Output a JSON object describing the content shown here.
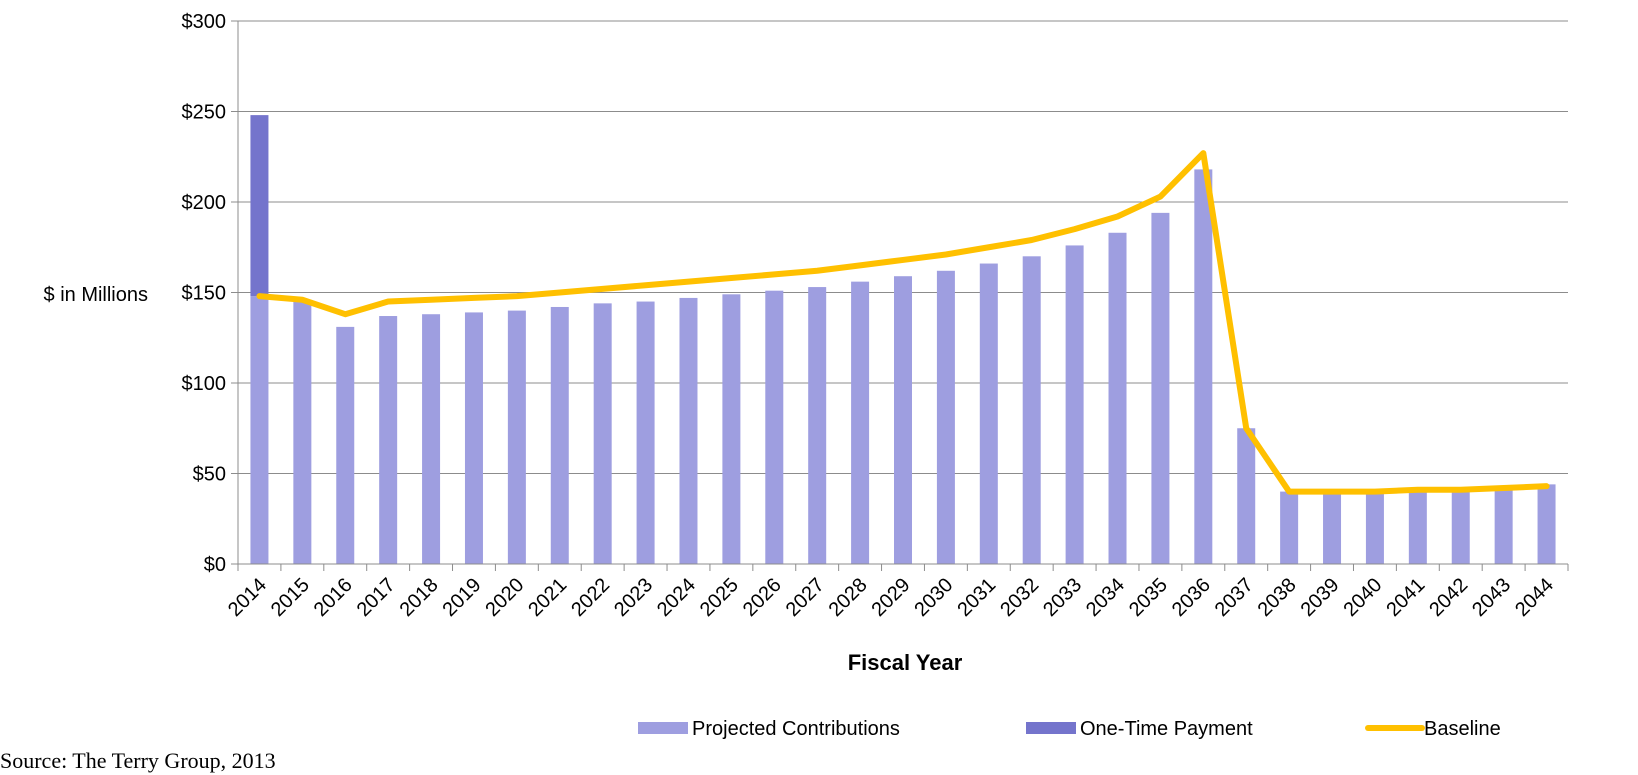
{
  "source_note": "Source: The Terry Group, 2013",
  "chart_data": {
    "type": "bar",
    "title": "",
    "xlabel": "Fiscal Year",
    "ylabel": "$ in Millions",
    "ylim": [
      0,
      300
    ],
    "yticks": [
      0,
      50,
      100,
      150,
      200,
      250,
      300
    ],
    "ytick_labels": [
      "$0",
      "$50",
      "$100",
      "$150",
      "$200",
      "$250",
      "$300"
    ],
    "grid": true,
    "legend_position": "bottom-right",
    "categories": [
      "2014",
      "2015",
      "2016",
      "2017",
      "2018",
      "2019",
      "2020",
      "2021",
      "2022",
      "2023",
      "2024",
      "2025",
      "2026",
      "2027",
      "2028",
      "2029",
      "2030",
      "2031",
      "2032",
      "2033",
      "2034",
      "2035",
      "2036",
      "2037",
      "2038",
      "2039",
      "2040",
      "2041",
      "2042",
      "2043",
      "2044"
    ],
    "series": [
      {
        "name": "Projected Contributions",
        "kind": "bar",
        "color": "#9e9ee0",
        "values": [
          148,
          146,
          131,
          137,
          138,
          139,
          140,
          142,
          144,
          145,
          147,
          149,
          151,
          153,
          156,
          159,
          162,
          166,
          170,
          176,
          183,
          194,
          218,
          75,
          40,
          40,
          40,
          41,
          42,
          42,
          44
        ]
      },
      {
        "name": "One-Time Payment",
        "kind": "bar-stacked",
        "color": "#7474cc",
        "values": [
          100,
          0,
          0,
          0,
          0,
          0,
          0,
          0,
          0,
          0,
          0,
          0,
          0,
          0,
          0,
          0,
          0,
          0,
          0,
          0,
          0,
          0,
          0,
          0,
          0,
          0,
          0,
          0,
          0,
          0,
          0
        ]
      },
      {
        "name": "Baseline",
        "kind": "line",
        "color": "#ffc000",
        "values": [
          148,
          146,
          138,
          145,
          146,
          147,
          148,
          150,
          152,
          154,
          156,
          158,
          160,
          162,
          165,
          168,
          171,
          175,
          179,
          185,
          192,
          203,
          227,
          75,
          40,
          40,
          40,
          41,
          41,
          42,
          43
        ]
      }
    ]
  }
}
